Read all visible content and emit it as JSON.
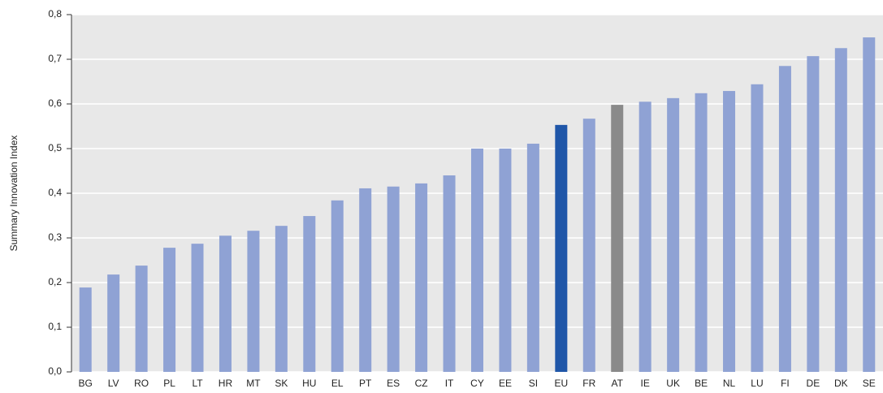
{
  "chart_data": {
    "type": "bar",
    "y_label": "Summary Innovation Index",
    "categories": [
      "BG",
      "LV",
      "RO",
      "PL",
      "LT",
      "HR",
      "MT",
      "SK",
      "HU",
      "EL",
      "PT",
      "ES",
      "CZ",
      "IT",
      "CY",
      "EE",
      "SI",
      "EU",
      "FR",
      "AT",
      "IE",
      "UK",
      "BE",
      "NL",
      "LU",
      "FI",
      "DE",
      "DK",
      "SE"
    ],
    "values": [
      0.189,
      0.218,
      0.238,
      0.278,
      0.287,
      0.305,
      0.316,
      0.327,
      0.349,
      0.384,
      0.411,
      0.415,
      0.422,
      0.44,
      0.5,
      0.5,
      0.511,
      0.553,
      0.567,
      0.598,
      0.605,
      0.613,
      0.624,
      0.629,
      0.644,
      0.685,
      0.707,
      0.725,
      0.749
    ],
    "colors": [
      "#8fa2d4",
      "#8fa2d4",
      "#8fa2d4",
      "#8fa2d4",
      "#8fa2d4",
      "#8fa2d4",
      "#8fa2d4",
      "#8fa2d4",
      "#8fa2d4",
      "#8fa2d4",
      "#8fa2d4",
      "#8fa2d4",
      "#8fa2d4",
      "#8fa2d4",
      "#8fa2d4",
      "#8fa2d4",
      "#8fa2d4",
      "#1f56a8",
      "#8fa2d4",
      "#8a8a8a",
      "#8fa2d4",
      "#8fa2d4",
      "#8fa2d4",
      "#8fa2d4",
      "#8fa2d4",
      "#8fa2d4",
      "#8fa2d4",
      "#8fa2d4",
      "#8fa2d4"
    ],
    "ylim": [
      0,
      0.8
    ],
    "yticks": [
      {
        "value": 0,
        "label": "0,0"
      },
      {
        "value": 0.1,
        "label": "0,1"
      },
      {
        "value": 0.2,
        "label": "0,2"
      },
      {
        "value": 0.3,
        "label": "0,3"
      },
      {
        "value": 0.4,
        "label": "0,4"
      },
      {
        "value": 0.5,
        "label": "0,5"
      },
      {
        "value": 0.6,
        "label": "0,6"
      },
      {
        "value": 0.7,
        "label": "0,7"
      },
      {
        "value": 0.8,
        "label": "0,8"
      }
    ],
    "grid": true
  }
}
